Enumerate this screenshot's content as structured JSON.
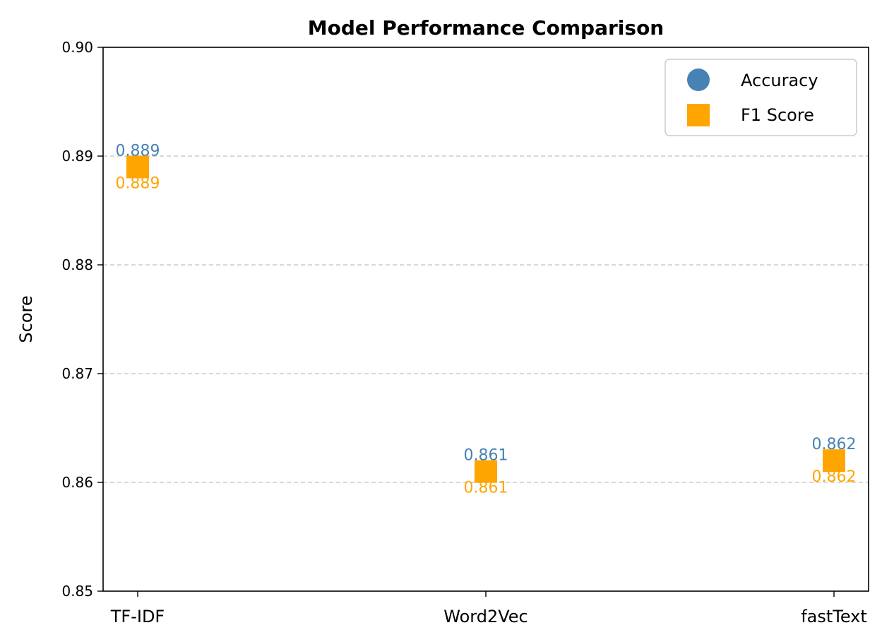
{
  "chart_data": {
    "type": "scatter",
    "title": "Model Performance Comparison",
    "xlabel": "",
    "ylabel": "Score",
    "categories": [
      "TF-IDF",
      "Word2Vec",
      "fastText"
    ],
    "ylim": [
      0.85,
      0.9
    ],
    "yticks": [
      "0.85",
      "0.86",
      "0.87",
      "0.88",
      "0.89",
      "0.90"
    ],
    "grid": "horizontal dashed",
    "legend_position": "top-right",
    "series": [
      {
        "name": "Accuracy",
        "marker": "circle",
        "color": "#4682b4",
        "values": [
          0.889,
          0.861,
          0.862
        ],
        "labels": [
          "0.889",
          "0.861",
          "0.862"
        ]
      },
      {
        "name": "F1 Score",
        "marker": "square",
        "color": "#ffa500",
        "values": [
          0.889,
          0.861,
          0.862
        ],
        "labels": [
          "0.889",
          "0.861",
          "0.862"
        ]
      }
    ]
  }
}
